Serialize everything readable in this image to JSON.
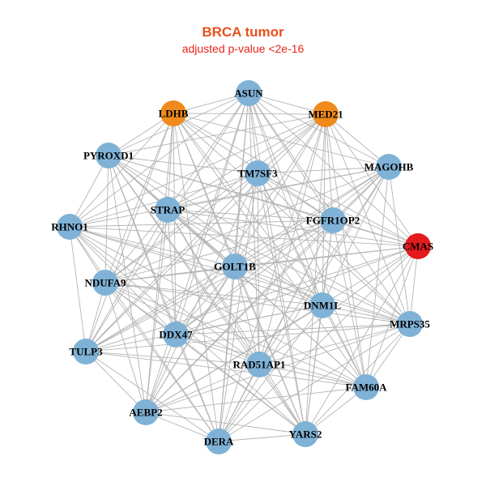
{
  "title": "BRCA tumor",
  "subtitle": "adjusted p-value <2e-16",
  "colors": {
    "title": "#e8501c",
    "subtitle": "#e8241c",
    "edge": "#b4b4b4",
    "default": "#7fb2d6",
    "orange": "#f08a1c",
    "red": "#e41a1c"
  },
  "nodes": [
    {
      "id": "ASUN",
      "label": "ASUN",
      "color": "default"
    },
    {
      "id": "LDHB",
      "label": "LDHB",
      "color": "orange"
    },
    {
      "id": "MED21",
      "label": "MED21",
      "color": "orange"
    },
    {
      "id": "PYROXD1",
      "label": "PYROXD1",
      "color": "default"
    },
    {
      "id": "MAGOHB",
      "label": "MAGOHB",
      "color": "default"
    },
    {
      "id": "TM7SF3",
      "label": "TM7SF3",
      "color": "default"
    },
    {
      "id": "STRAP",
      "label": "STRAP",
      "color": "default"
    },
    {
      "id": "FGFR1OP2",
      "label": "FGFR1OP2",
      "color": "default"
    },
    {
      "id": "RHNO1",
      "label": "RHNO1",
      "color": "default"
    },
    {
      "id": "CMAS",
      "label": "CMAS",
      "color": "red"
    },
    {
      "id": "GOLT1B",
      "label": "GOLT1B",
      "color": "default"
    },
    {
      "id": "NDUFA9",
      "label": "NDUFA9",
      "color": "default"
    },
    {
      "id": "DNM1L",
      "label": "DNM1L",
      "color": "default"
    },
    {
      "id": "MRPS35",
      "label": "MRPS35",
      "color": "default"
    },
    {
      "id": "DDX47",
      "label": "DDX47",
      "color": "default"
    },
    {
      "id": "TULP3",
      "label": "TULP3",
      "color": "default"
    },
    {
      "id": "RAD51AP1",
      "label": "RAD51AP1",
      "color": "default"
    },
    {
      "id": "FAM60A",
      "label": "FAM60A",
      "color": "default"
    },
    {
      "id": "AEBP2",
      "label": "AEBP2",
      "color": "default"
    },
    {
      "id": "DERA",
      "label": "DERA",
      "color": "default"
    },
    {
      "id": "YARS2",
      "label": "YARS2",
      "color": "default"
    }
  ]
}
